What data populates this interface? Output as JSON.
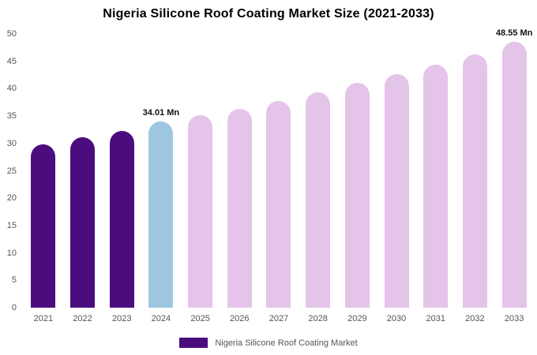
{
  "chart_data": {
    "type": "bar",
    "title": "Nigeria Silicone Roof Coating Market Size (2021-2033)",
    "categories": [
      "2021",
      "2022",
      "2023",
      "2024",
      "2025",
      "2026",
      "2027",
      "2028",
      "2029",
      "2030",
      "2031",
      "2032",
      "2033"
    ],
    "values": [
      29.9,
      31.1,
      32.3,
      34.01,
      35.1,
      36.3,
      37.8,
      39.3,
      41.0,
      42.7,
      44.4,
      46.2,
      48.55
    ],
    "color_keys": [
      "historical",
      "historical",
      "historical",
      "current",
      "forecast",
      "forecast",
      "forecast",
      "forecast",
      "forecast",
      "forecast",
      "forecast",
      "forecast",
      "forecast"
    ],
    "colors": {
      "historical": "#4B0D7E",
      "current": "#9DC7E1",
      "forecast": "#E5C4E9",
      "axis_text": "#555555",
      "annotation_text": "#111111",
      "background": "#ffffff"
    },
    "annotations": [
      {
        "index": 3,
        "text": "34.01 Mn"
      },
      {
        "index": 12,
        "text": "48.55 Mn"
      }
    ],
    "xlabel": "",
    "ylabel": "",
    "ylim": [
      0,
      50
    ],
    "yticks": [
      0,
      5,
      10,
      15,
      20,
      25,
      30,
      35,
      40,
      45,
      50
    ],
    "grid": false,
    "legend_position": "bottom"
  },
  "legend": {
    "label": "Nigeria Silicone Roof Coating Market",
    "swatch_color": "#4B0D7E"
  }
}
